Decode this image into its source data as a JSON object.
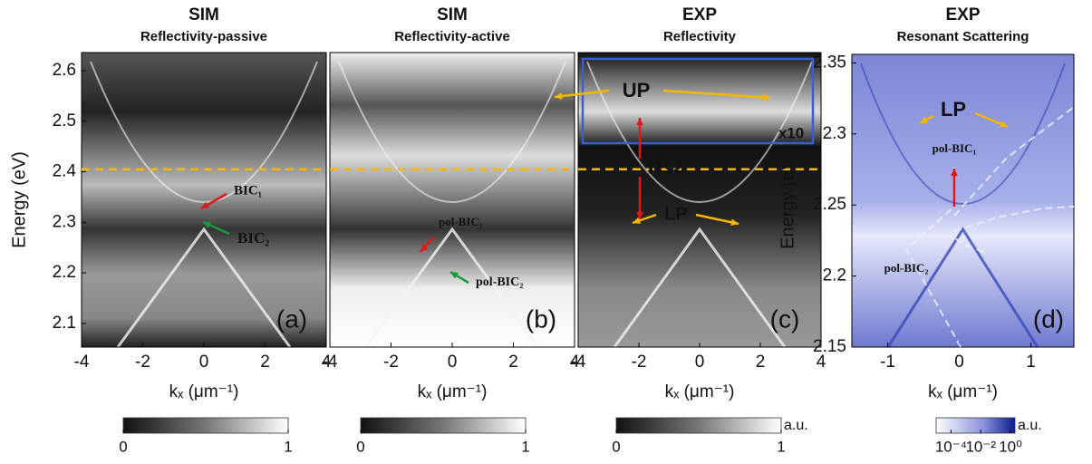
{
  "chart_data": [
    {
      "type": "heatmap",
      "title": "SIM",
      "subtitle": "Reflectivity-passive",
      "xlabel": "kₓ (μm⁻¹)",
      "ylabel": "Energy (eV)",
      "xlim": [
        -4,
        4
      ],
      "xticks": [
        -4,
        -2,
        0,
        2,
        4
      ],
      "ylim": [
        2.053,
        2.636
      ],
      "yticks": [
        2.1,
        2.2,
        2.3,
        2.4,
        2.5,
        2.6
      ],
      "hline": 2.405,
      "annotations": [
        "BIC₁",
        "BIC₂",
        "(a)"
      ],
      "colorbar": {
        "lim": [
          0,
          1
        ],
        "ticks": [
          0,
          1
        ]
      }
    },
    {
      "type": "heatmap",
      "title": "SIM",
      "subtitle": "Reflectivity-active",
      "xlabel": "kₓ (μm⁻¹)",
      "xlim": [
        -4,
        4
      ],
      "xticks": [
        -4,
        -2,
        0,
        2,
        4
      ],
      "ylim": [
        2.053,
        2.636
      ],
      "hline": 2.405,
      "annotations": [
        "pol-BIC₁",
        "pol-BIC₂",
        "(b)"
      ],
      "colorbar": {
        "lim": [
          0,
          1
        ],
        "ticks": [
          0,
          1
        ]
      }
    },
    {
      "type": "heatmap",
      "title": "EXP",
      "subtitle": "Reflectivity",
      "xlabel": "kₓ (μm⁻¹)",
      "xlim": [
        -4,
        4
      ],
      "xticks": [
        -4,
        -2,
        0,
        2,
        4
      ],
      "ylim": [
        2.053,
        2.636
      ],
      "hline": 2.405,
      "annotations": [
        "UP",
        "LP",
        "ħΩ",
        "x10",
        "(c)"
      ],
      "colorbar": {
        "lim": [
          0,
          1
        ],
        "ticks": [
          0,
          1
        ],
        "label": "a.u."
      }
    },
    {
      "type": "heatmap",
      "title": "EXP",
      "subtitle": "Resonant Scattering",
      "xlabel": "kₓ (μm⁻¹)",
      "ylabel": "Energy (eV)",
      "xlim": [
        -1.5,
        1.6
      ],
      "xticks": [
        -1,
        0,
        1
      ],
      "ylim": [
        2.15,
        2.356
      ],
      "yticks": [
        2.15,
        2.2,
        2.25,
        2.3,
        2.35
      ],
      "annotations": [
        "LP",
        "pol-BIC₁",
        "pol-BIC₂",
        "(d)"
      ],
      "colorbar": {
        "log": true,
        "lim": [
          1e-05,
          2
        ],
        "ticks": [
          {
            "value": 0.0001,
            "label": "10⁻⁴"
          },
          {
            "value": 0.01,
            "label": "10⁻²"
          },
          {
            "value": 1,
            "label": "10⁰"
          }
        ],
        "label": "a.u."
      }
    }
  ]
}
